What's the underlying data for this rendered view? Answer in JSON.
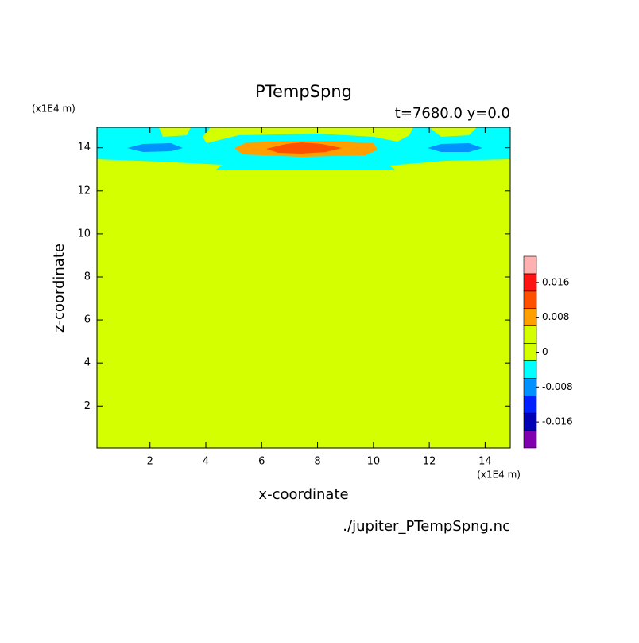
{
  "chart_data": {
    "type": "contour",
    "title": "PTempSpng",
    "subtitle": "t=7680.0 y=0.0",
    "x_label": "x-coordinate",
    "y_label": "z-coordinate",
    "x_units": "(x1E4 m)",
    "y_units": "(x1E4 m)",
    "file_label": "./jupiter_PTempSpng.nc",
    "xlim": [
      0.1,
      14.9
    ],
    "ylim": [
      0.05,
      14.95
    ],
    "xticks": [
      2,
      4,
      6,
      8,
      10,
      12,
      14
    ],
    "yticks": [
      2,
      4,
      6,
      8,
      10,
      12,
      14
    ],
    "colorbar_lim": [
      -0.022,
      0.022
    ],
    "colorbar_ticks": [
      -0.016,
      -0.008,
      0,
      0.008,
      0.016
    ],
    "colors": [
      "#8000b0",
      "#0000b4",
      "#0020ff",
      "#0090ff",
      "#00ffff",
      "#d4ff00",
      "#d4ff00",
      "#ffa000",
      "#ff5000",
      "#ff1414",
      "#ffb0b0"
    ]
  }
}
